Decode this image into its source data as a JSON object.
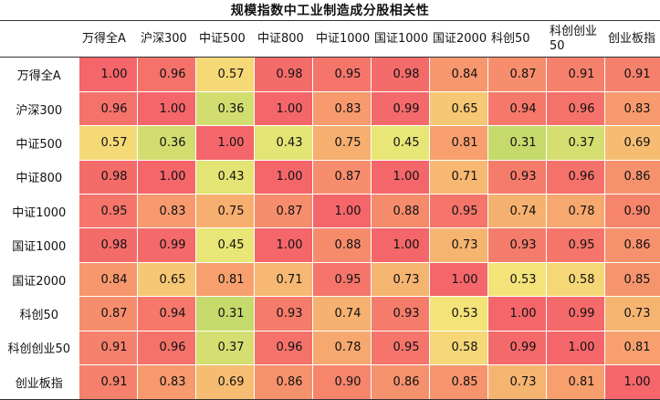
{
  "chart_data": {
    "type": "heatmap",
    "title": "规模指数中工业制造成分股相关性",
    "columns": [
      "万得全A",
      "沪深300",
      "中证500",
      "中证800",
      "中证1000",
      "国证1000",
      "国证2000",
      "科创50",
      "科创创业50",
      "创业板指"
    ],
    "rows": [
      "万得全A",
      "沪深300",
      "中证500",
      "中证800",
      "中证1000",
      "国证1000",
      "国证2000",
      "科创50",
      "科创创业50",
      "创业板指"
    ],
    "values": [
      [
        1.0,
        0.96,
        0.57,
        0.98,
        0.95,
        0.98,
        0.84,
        0.87,
        0.91,
        0.91
      ],
      [
        0.96,
        1.0,
        0.36,
        1.0,
        0.83,
        0.99,
        0.65,
        0.94,
        0.96,
        0.83
      ],
      [
        0.57,
        0.36,
        1.0,
        0.43,
        0.75,
        0.45,
        0.81,
        0.31,
        0.37,
        0.69
      ],
      [
        0.98,
        1.0,
        0.43,
        1.0,
        0.87,
        1.0,
        0.71,
        0.93,
        0.96,
        0.86
      ],
      [
        0.95,
        0.83,
        0.75,
        0.87,
        1.0,
        0.88,
        0.95,
        0.74,
        0.78,
        0.9
      ],
      [
        0.98,
        0.99,
        0.45,
        1.0,
        0.88,
        1.0,
        0.73,
        0.93,
        0.95,
        0.86
      ],
      [
        0.84,
        0.65,
        0.81,
        0.71,
        0.95,
        0.73,
        1.0,
        0.53,
        0.58,
        0.85
      ],
      [
        0.87,
        0.94,
        0.31,
        0.93,
        0.74,
        0.93,
        0.53,
        1.0,
        0.99,
        0.73
      ],
      [
        0.91,
        0.96,
        0.37,
        0.96,
        0.78,
        0.95,
        0.58,
        0.99,
        1.0,
        0.81
      ],
      [
        0.91,
        0.83,
        0.69,
        0.86,
        0.9,
        0.86,
        0.85,
        0.73,
        0.81,
        1.0
      ]
    ],
    "color_scale": {
      "low": "#c4d86a",
      "mid": "#f4ea7a",
      "mid_high": "#f7a36e",
      "high": "#f4666a"
    }
  }
}
